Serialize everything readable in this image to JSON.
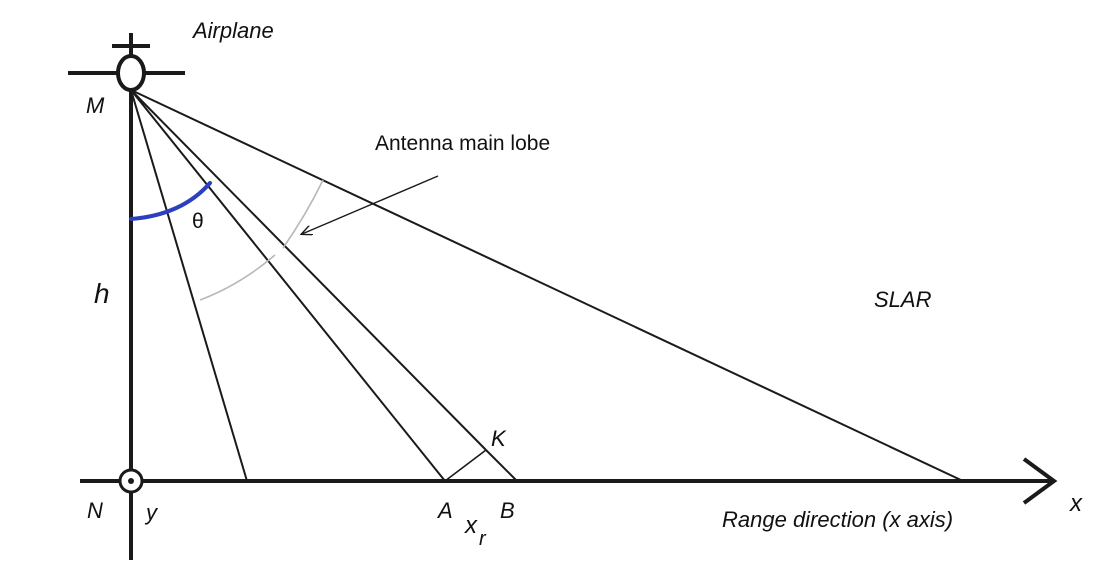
{
  "labels": {
    "airplane": "Airplane",
    "m": "M",
    "n": "N",
    "y": "y",
    "h": "h",
    "theta": "θ",
    "antenna": "Antenna main lobe",
    "slar": "SLAR",
    "k": "K",
    "a": "A",
    "b": "B",
    "xr_main": "x",
    "xr_sub": "r",
    "x": "x",
    "range": "Range direction (x axis)"
  },
  "colors": {
    "line": "#1a1a1a",
    "arc_theta": "#2b3fbf",
    "arc_lobe": "#b8b8b8"
  }
}
